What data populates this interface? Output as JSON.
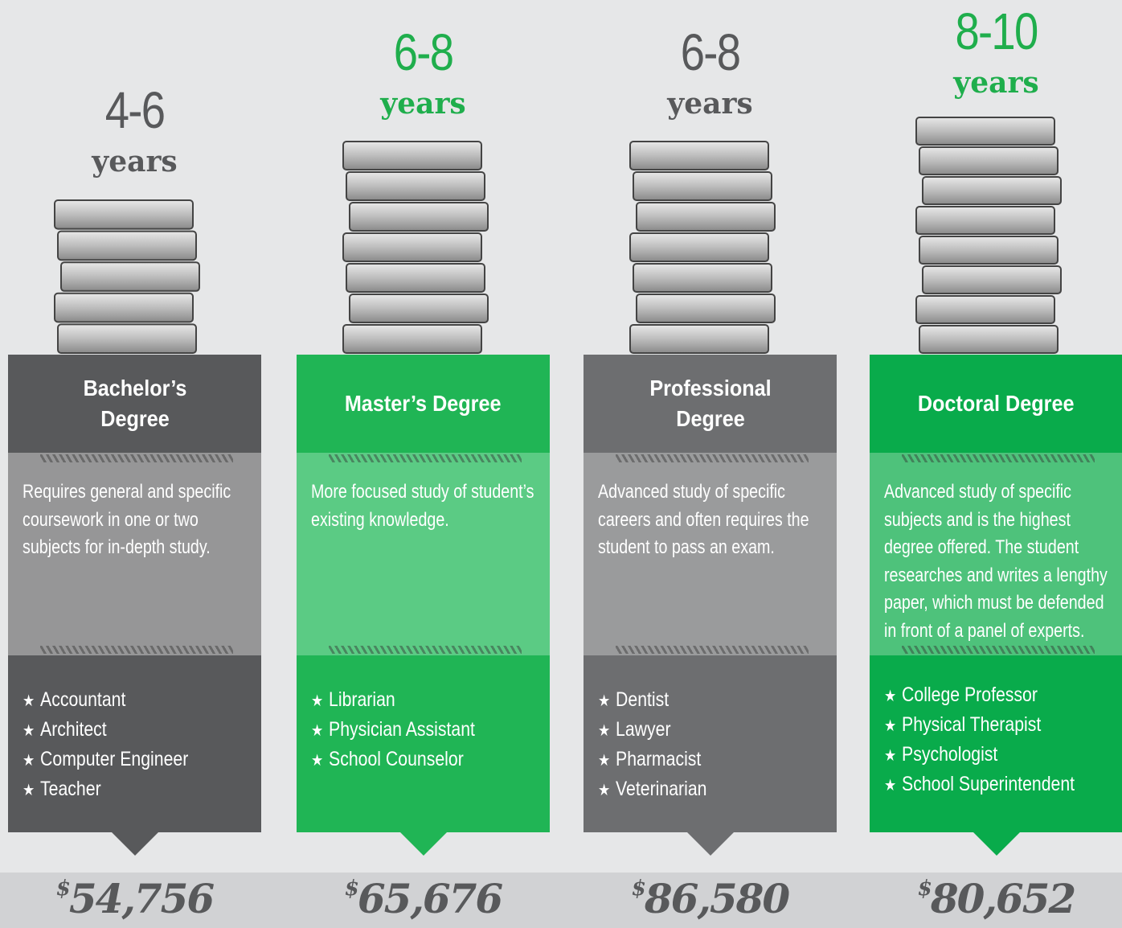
{
  "columns": [
    {
      "years": {
        "range": "4-6",
        "unit": "years"
      },
      "title": "Bachelor’s Degree",
      "description": "Requires general and specific coursework in one or two subjects for in-depth study.",
      "careers": [
        "Accountant",
        "Architect",
        "Computer Engineer",
        "Teacher"
      ],
      "salary": {
        "symbol": "$",
        "amount": "54,756"
      }
    },
    {
      "years": {
        "range": "6-8",
        "unit": "years"
      },
      "title": "Master’s Degree",
      "description": "More focused study of student’s existing knowledge.",
      "careers": [
        "Librarian",
        "Physician Assistant",
        "School Counselor"
      ],
      "salary": {
        "symbol": "$",
        "amount": "65,676"
      }
    },
    {
      "years": {
        "range": "6-8",
        "unit": "years"
      },
      "title": "Professional Degree",
      "description": "Advanced study of specific careers and often requires the student to pass an exam.",
      "careers": [
        "Dentist",
        "Lawyer",
        "Pharmacist",
        "Veterinarian"
      ],
      "salary": {
        "symbol": "$",
        "amount": "86,580"
      }
    },
    {
      "years": {
        "range": "8-10",
        "unit": "years"
      },
      "title": "Doctoral Degree",
      "description": "Advanced study of specific subjects and is the highest degree offered. The student researches and writes a lengthy paper, which must be defended in front of a panel of experts.",
      "careers": [
        "College Professor",
        "Physical Therapist",
        "Psychologist",
        "School Superintendent"
      ],
      "salary": {
        "symbol": "$",
        "amount": "80,652"
      }
    }
  ]
}
